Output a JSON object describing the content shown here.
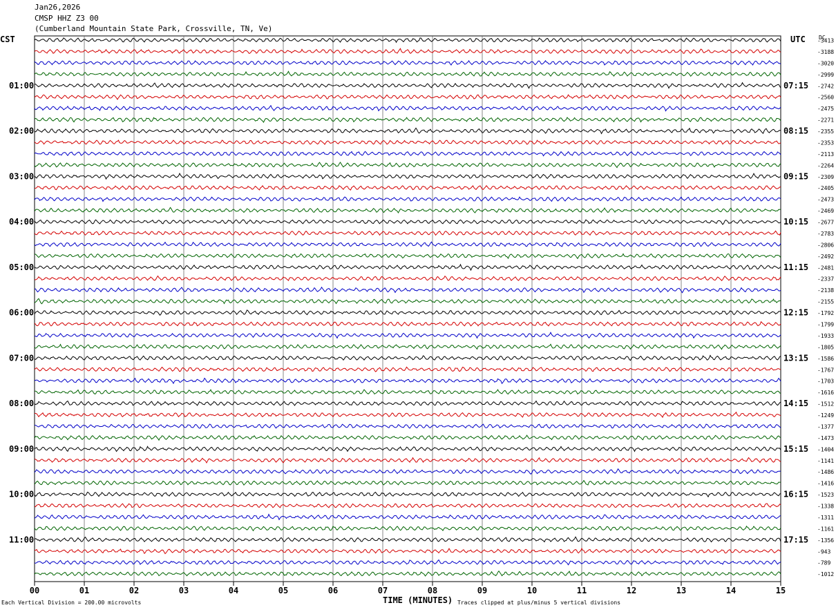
{
  "header": {
    "date": "Jan26,2026",
    "station": "CMSP HHZ Z3 00",
    "location": "(Cumberland Mountain State Park, Crossville, TN, Ve)"
  },
  "left_axis_label": "CST",
  "right_axis_label": "UTC",
  "dc_label": "DC",
  "chart_data": {
    "type": "line",
    "title": "CMSP HHZ Z3 00",
    "xlabel": "TIME (MINUTES)",
    "x_ticks": [
      "00",
      "01",
      "02",
      "03",
      "04",
      "05",
      "06",
      "07",
      "08",
      "09",
      "10",
      "11",
      "12",
      "13",
      "14",
      "15"
    ],
    "xlim": [
      0,
      15
    ],
    "trace_colors": [
      "#000000",
      "#d40000",
      "#0000c8",
      "#006400"
    ],
    "trace_count": 48,
    "left_time_labels": [
      "01:00",
      "02:00",
      "03:00",
      "04:00",
      "05:00",
      "06:00",
      "07:00",
      "08:00",
      "09:00",
      "10:00",
      "11:00"
    ],
    "right_time_labels": [
      "07:15",
      "08:15",
      "09:15",
      "10:15",
      "11:15",
      "12:15",
      "13:15",
      "14:15",
      "15:15",
      "16:15",
      "17:15"
    ],
    "dc_offsets": [
      "-3413",
      "-3188",
      "-3020",
      "-2999",
      "-2742",
      "-2560",
      "-2475",
      "-2271",
      "-2355",
      "-2353",
      "-2113",
      "-2264",
      "-2309",
      "-2405",
      "-2473",
      "-2469",
      "-2677",
      "-2783",
      "-2806",
      "-2492",
      "-2481",
      "-2337",
      "-2138",
      "-2155",
      "-1792",
      "-1799",
      "-1933",
      "-1805",
      "-1586",
      "-1767",
      "-1703",
      "-1616",
      "-1512",
      "-1249",
      "-1377",
      "-1473",
      "-1404",
      "-1141",
      "-1486",
      "-1416",
      "-1523",
      "-1338",
      "-1311",
      "-1161",
      "-1356",
      "-943",
      "-789",
      "-1012"
    ]
  },
  "footer": {
    "scale_note": "Each Vertical Division =  200.00 microvolts",
    "clip_note": "Traces clipped at plus/minus 5 vertical divisions"
  }
}
